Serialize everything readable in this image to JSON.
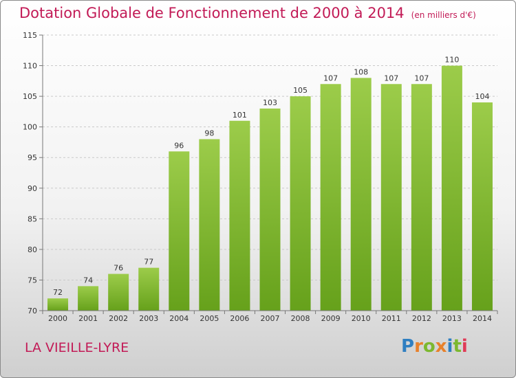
{
  "header": {
    "title": "Dotation Globale de Fonctionnement de 2000 à 2014",
    "subtitle": "(en milliers d'€)"
  },
  "footer": {
    "place": "LA VIEILLE-LYRE",
    "logo": "Proxiti"
  },
  "colors": {
    "bar_top": "#9ccc4a",
    "bar_bottom": "#66a11b",
    "title": "#c21a56"
  },
  "chart_data": {
    "type": "bar",
    "categories": [
      "2000",
      "2001",
      "2002",
      "2003",
      "2004",
      "2005",
      "2006",
      "2007",
      "2008",
      "2009",
      "2010",
      "2011",
      "2012",
      "2013",
      "2014"
    ],
    "values": [
      72,
      74,
      76,
      77,
      96,
      98,
      101,
      103,
      105,
      107,
      108,
      107,
      107,
      110,
      104
    ],
    "data_labels": [
      "72",
      "74",
      "76",
      "77",
      "96",
      "98",
      "101",
      "103",
      "105",
      "107",
      "108",
      "107",
      "107",
      "110",
      "104"
    ],
    "title": "Dotation Globale de Fonctionnement de 2000 à 2014",
    "subtitle": "(en milliers d'€)",
    "ylim": [
      70,
      115
    ],
    "yticks": [
      70,
      75,
      80,
      85,
      90,
      95,
      100,
      105,
      110,
      115
    ],
    "grid": true
  }
}
